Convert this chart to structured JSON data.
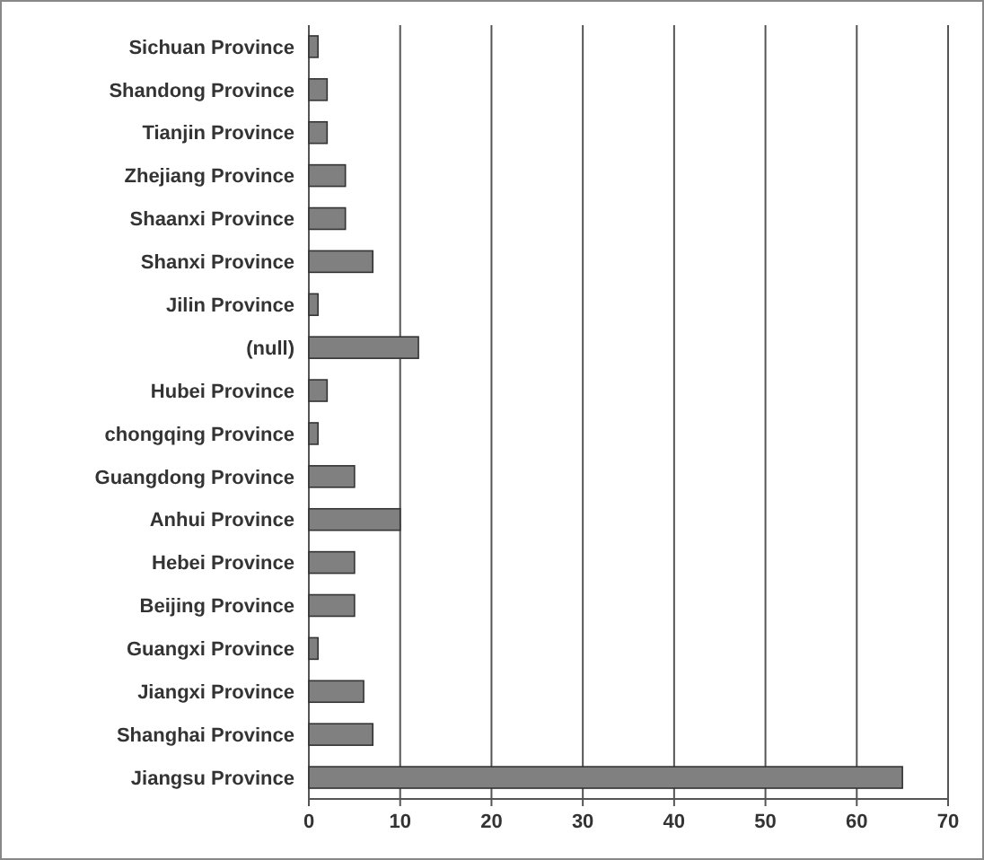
{
  "chart_data": {
    "type": "bar",
    "orientation": "horizontal",
    "categories": [
      "Sichuan Province",
      "Shandong Province",
      "Tianjin Province",
      "Zhejiang Province",
      "Shaanxi Province",
      "Shanxi Province",
      "Jilin Province",
      "(null)",
      "Hubei Province",
      "chongqing Province",
      "Guangdong Province",
      "Anhui Province",
      "Hebei Province",
      "Beijing Province",
      "Guangxi Province",
      "Jiangxi Province",
      "Shanghai Province",
      "Jiangsu Province"
    ],
    "values": [
      1,
      2,
      2,
      4,
      4,
      7,
      1,
      12,
      2,
      1,
      5,
      10,
      5,
      5,
      1,
      6,
      7,
      65
    ],
    "color": "#808080",
    "xlim": [
      0,
      70
    ],
    "xticks": [
      0,
      10,
      20,
      30,
      40,
      50,
      60,
      70
    ],
    "grid": "x"
  }
}
